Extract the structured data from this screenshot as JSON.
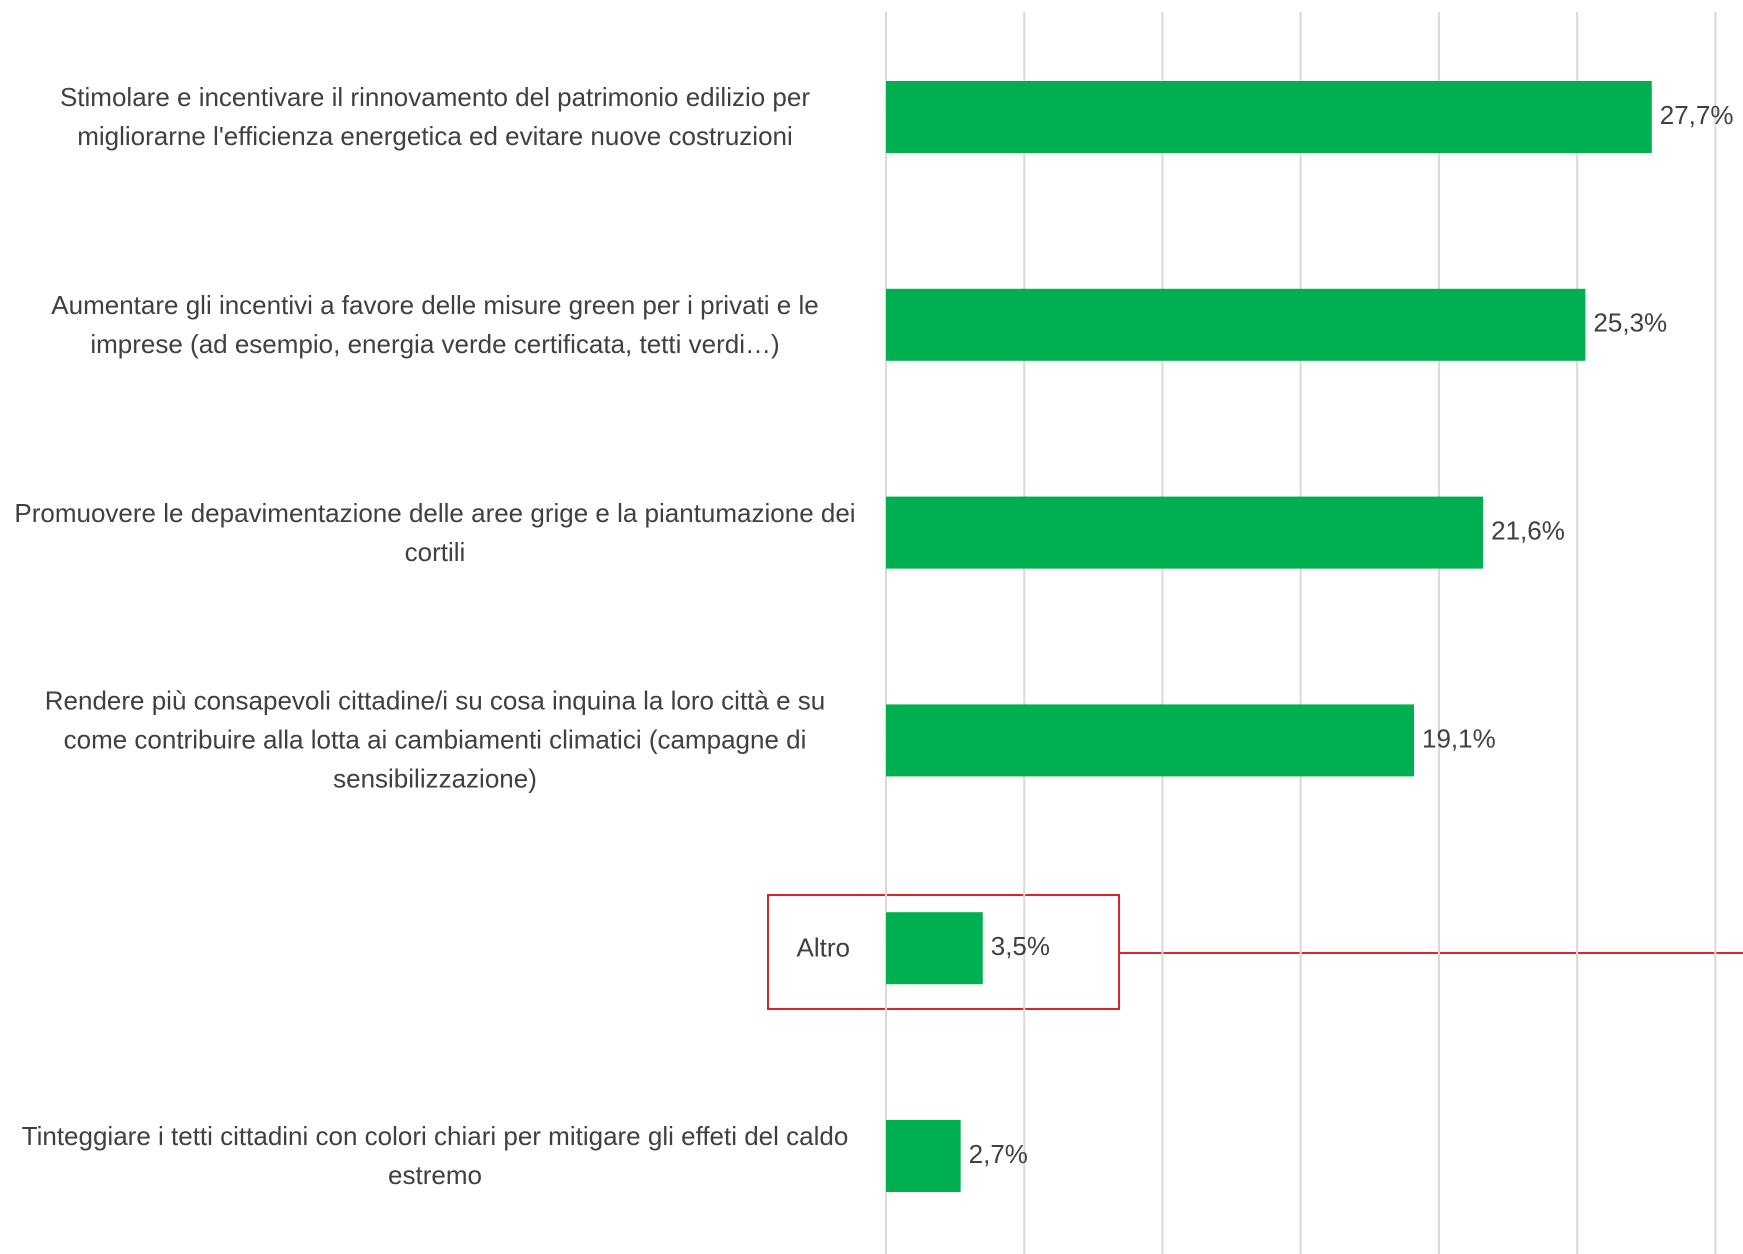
{
  "chart_data": {
    "type": "bar",
    "orientation": "horizontal",
    "categories": [
      "Stimolare e incentivare il rinnovamento del patrimonio edilizio per migliorarne l'efficienza energetica ed evitare nuove costruzioni",
      "Aumentare gli incentivi a favore delle misure green per i privati e le imprese (ad esempio, energia verde certificata, tetti verdi…)",
      "Promuovere le depavimentazione delle aree grige e la piantumazione dei cortili",
      "Rendere più consapevoli cittadine/i su cosa inquina la loro città e su come contribuire alla lotta ai cambiamenti climatici (campagne di sensibilizzazione)",
      "Altro",
      "Tinteggiare i tetti cittadini con colori chiari per mitigare gli effeti del caldo estremo"
    ],
    "values": [
      27.7,
      25.3,
      21.6,
      19.1,
      3.5,
      2.7
    ],
    "value_labels": [
      "27,7%",
      "25,3%",
      "21,6%",
      "19,1%",
      "3,5%",
      "2,7%"
    ],
    "color": "#00b050",
    "xlim": [
      0,
      31
    ],
    "xticks": [
      0,
      5,
      10,
      15,
      20,
      25,
      30
    ],
    "grid": true
  }
}
